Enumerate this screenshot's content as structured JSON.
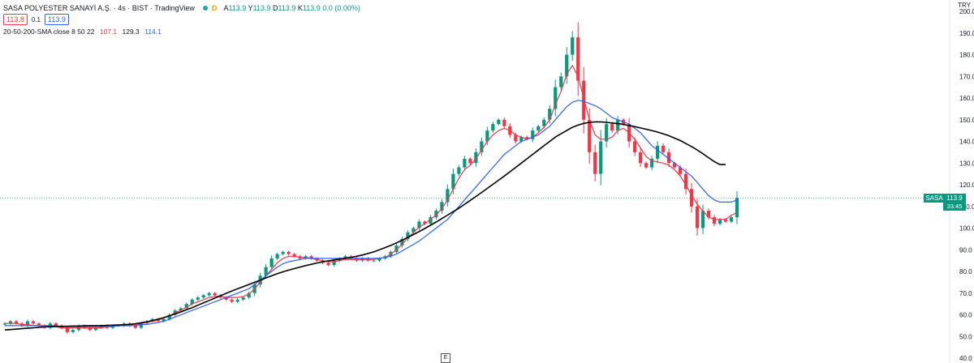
{
  "header": {
    "title": "SASA POLYESTER SANAYİ A.Ş. · 4s · BIST · TradingView",
    "d_label": "D",
    "ohlc": [
      {
        "label": "A",
        "value": "113.9"
      },
      {
        "label": "Y",
        "value": "113.9"
      },
      {
        "label": "D",
        "value": "113.9"
      },
      {
        "label": "K",
        "value": "113.9"
      },
      {
        "label": "",
        "value": "0.0 (0.00%)"
      }
    ],
    "sell_price": "113.8",
    "spread": "0.1",
    "buy_price": "113.9"
  },
  "indicator": {
    "label": "20-50-200-SMA close 8 50 22",
    "v1": "107.1",
    "v2": "129.3",
    "v3": "114.1"
  },
  "currency": "TRY",
  "price_tag": {
    "symbol": "SASA",
    "price": "113.9",
    "countdown": "33:45"
  },
  "e_marker": "E",
  "colors": {
    "up": "#089981",
    "down": "#f23645",
    "sma_fast": "#f23645",
    "sma_mid": "#2962ff",
    "sma_slow": "#000000"
  },
  "chart_data": {
    "type": "candlestick",
    "ylim": [
      40,
      200
    ],
    "y_ticks": [
      "200.0",
      "190.0",
      "180.0",
      "170.0",
      "160.0",
      "150.0",
      "140.0",
      "130.0",
      "120.0",
      "110.0",
      "100.0",
      "90.0",
      "80.0",
      "70.0",
      "60.0",
      "50.0",
      "40.0"
    ],
    "last_price": 113.9,
    "candles_close": [
      56,
      57,
      56,
      55,
      57,
      56,
      55,
      54,
      56,
      55,
      54,
      52,
      53,
      55,
      54,
      53,
      54,
      55,
      54,
      55,
      55,
      56,
      55,
      54,
      56,
      57,
      58,
      57,
      58,
      60,
      62,
      63,
      65,
      67,
      68,
      69,
      70,
      69,
      68,
      67,
      66,
      67,
      68,
      70,
      74,
      78,
      82,
      86,
      88,
      89,
      88,
      87,
      86,
      87,
      86,
      85,
      84,
      83,
      85,
      86,
      87,
      86,
      85,
      86,
      85,
      85,
      86,
      87,
      89,
      92,
      95,
      98,
      100,
      103,
      102,
      105,
      108,
      112,
      118,
      125,
      128,
      132,
      130,
      135,
      140,
      145,
      148,
      150,
      147,
      143,
      140,
      142,
      141,
      145,
      147,
      150,
      155,
      165,
      170,
      180,
      188,
      168,
      150,
      135,
      125,
      140,
      148,
      145,
      150,
      148,
      140,
      135,
      130,
      128,
      132,
      138,
      135,
      130,
      128,
      125,
      118,
      110,
      100,
      108,
      105,
      102,
      104,
      103,
      105,
      113.9
    ],
    "series": [
      {
        "name": "SMA fast",
        "values": [
          56,
          56,
          56,
          55.5,
          55.5,
          55,
          55,
          54.5,
          54.5,
          54.5,
          54,
          54,
          54,
          54,
          54,
          54,
          54,
          54,
          54.5,
          54.5,
          55,
          55,
          55.5,
          55.5,
          56,
          56.5,
          57,
          57.5,
          58.5,
          59.5,
          61,
          62,
          63.5,
          65,
          66,
          67,
          68,
          68.5,
          68.5,
          68,
          68,
          68,
          68.5,
          69.5,
          72,
          75,
          78,
          81,
          84,
          86,
          87,
          87,
          86.5,
          86.5,
          86,
          85.5,
          85,
          84.5,
          84.5,
          85,
          85.5,
          85.5,
          85.5,
          85.5,
          85.5,
          85.5,
          86,
          86.5,
          88,
          90,
          92.5,
          95.5,
          98,
          100.5,
          102,
          104,
          106,
          109,
          113,
          118,
          123,
          127,
          129,
          132,
          136,
          140,
          143,
          145,
          146,
          145,
          143,
          142,
          141,
          142,
          144,
          146.5,
          150,
          157,
          163,
          171,
          175,
          170,
          160,
          150,
          143,
          141,
          141,
          142,
          145,
          146,
          144,
          141,
          137,
          133,
          131,
          130.5,
          130,
          129,
          127,
          124,
          120,
          115,
          111,
          108,
          105,
          104,
          104,
          104,
          106,
          107.1
        ]
      },
      {
        "name": "SMA mid",
        "values": [
          55,
          55,
          55,
          55,
          55,
          55,
          55,
          55,
          55,
          55,
          54.5,
          54.5,
          54.5,
          54.5,
          54.5,
          54.5,
          54.5,
          54.5,
          54.5,
          54.5,
          55,
          55,
          55,
          55,
          55.5,
          55.5,
          56,
          56.5,
          57,
          58,
          59,
          60,
          61,
          62,
          63,
          64,
          65,
          66,
          67,
          68,
          69,
          70,
          71,
          72,
          74,
          76,
          78,
          80,
          82,
          83.5,
          84.5,
          85,
          85.5,
          86,
          86,
          86,
          86,
          86,
          86,
          86,
          86,
          86,
          86,
          86,
          86,
          86,
          86,
          86.5,
          87,
          88,
          89.5,
          91,
          92.5,
          94,
          96,
          98,
          100,
          102,
          104,
          107,
          110,
          113,
          116,
          119,
          122,
          125,
          128,
          131,
          134,
          136,
          138,
          140,
          141,
          142,
          143,
          145,
          147,
          150,
          153,
          156,
          158,
          159,
          158.5,
          157.5,
          156.5,
          155,
          153,
          151,
          150,
          149,
          148,
          146,
          144,
          141,
          138,
          136,
          134,
          132,
          130,
          128,
          126,
          124,
          121,
          118,
          115,
          113,
          112,
          112,
          112,
          113,
          114.1
        ]
      },
      {
        "name": "SMA slow",
        "values": [
          53,
          53.2,
          53.4,
          53.6,
          53.8,
          54,
          54.2,
          54.4,
          54.5,
          54.6,
          54.7,
          54.7,
          54.8,
          54.8,
          54.9,
          55,
          55,
          55,
          55.1,
          55.2,
          55.3,
          55.4,
          55.6,
          55.9,
          56.3,
          56.8,
          57.4,
          58,
          58.7,
          59.5,
          60.4,
          61.3,
          62.3,
          63.3,
          64.4,
          65.5,
          66.6,
          67.7,
          68.8,
          69.9,
          71,
          72,
          73,
          74,
          75,
          76,
          77,
          78,
          79,
          79.8,
          80.6,
          81.3,
          82,
          82.7,
          83.3,
          83.9,
          84.4,
          84.9,
          85.3,
          85.7,
          86.1,
          86.5,
          87,
          87.6,
          88.3,
          89,
          90,
          91,
          92,
          93.2,
          94.4,
          95.7,
          97,
          98.4,
          99.8,
          101.3,
          102.8,
          104.4,
          106,
          107.6,
          109.2,
          111,
          112.8,
          114.6,
          116.4,
          118.3,
          120.2,
          122.1,
          124,
          126,
          128,
          130,
          132,
          134,
          136,
          138,
          140,
          142,
          143.5,
          145,
          146.5,
          147.5,
          148.3,
          148.8,
          149,
          149,
          148.8,
          148.5,
          148.2,
          147.8,
          147.3,
          146.8,
          146.2,
          145.6,
          145,
          144.3,
          143.5,
          142.6,
          141.5,
          140.4,
          139,
          137.6,
          136,
          134.3,
          132.5,
          130.7,
          129.3,
          129.3
        ]
      }
    ]
  }
}
